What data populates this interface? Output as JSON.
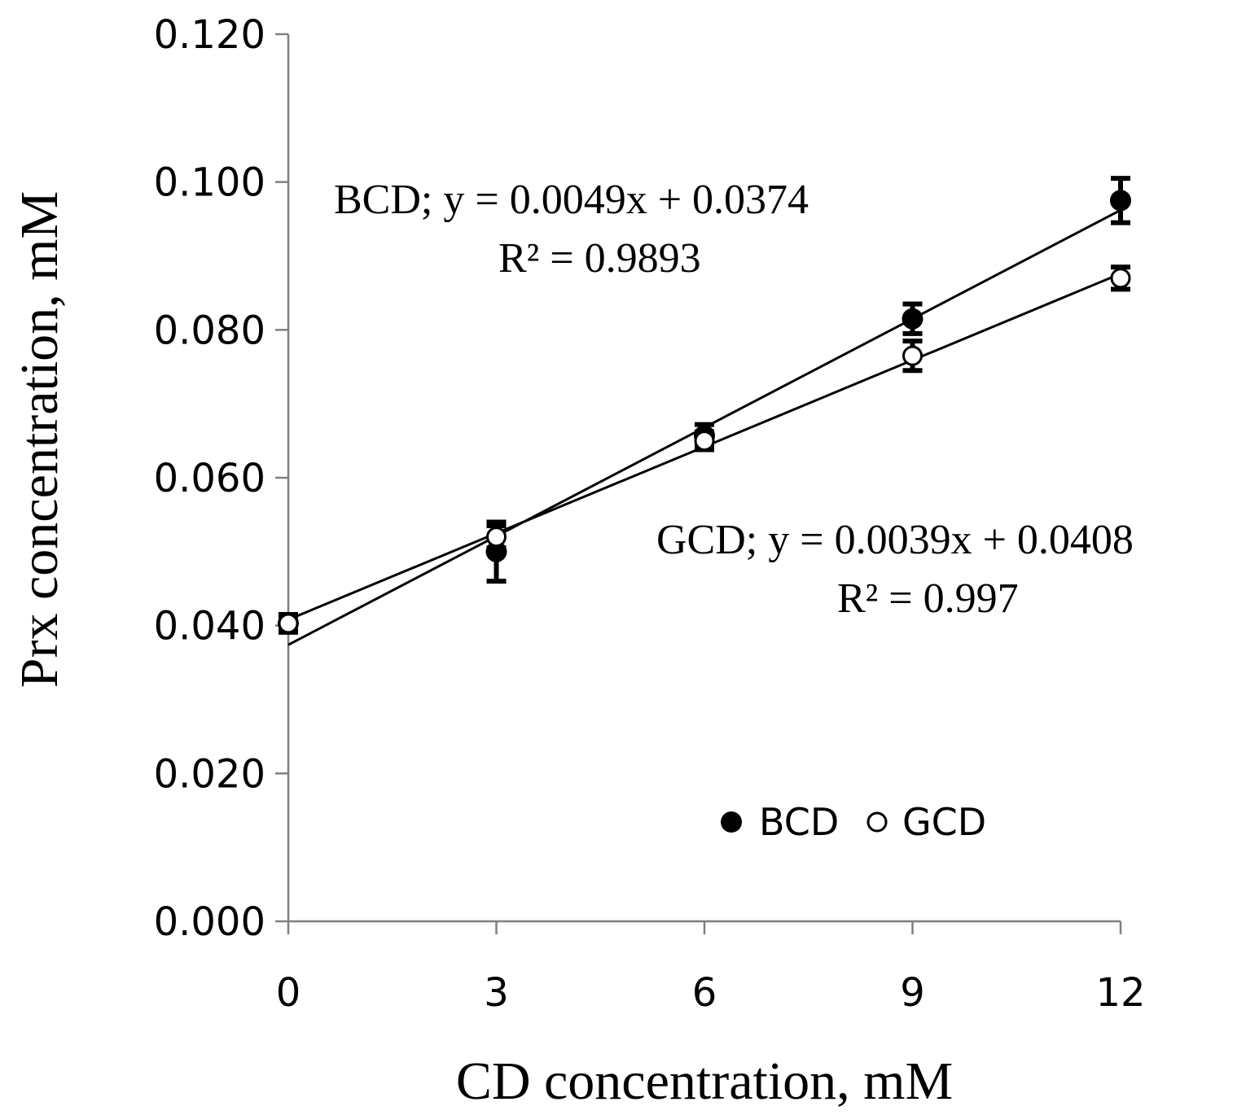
{
  "chart_data": {
    "type": "scatter",
    "title": "",
    "xlabel": "CD concentration, mM",
    "ylabel": "Prx concentration, mM",
    "xlim": [
      0,
      12
    ],
    "ylim": [
      0,
      0.12
    ],
    "x_ticks": [
      "0",
      "3",
      "6",
      "9",
      "12"
    ],
    "x_tick_values": [
      0,
      3,
      6,
      9,
      12
    ],
    "y_ticks": [
      "0.000",
      "0.020",
      "0.040",
      "0.060",
      "0.080",
      "0.100",
      "0.120"
    ],
    "y_tick_values": [
      0,
      0.02,
      0.04,
      0.06,
      0.08,
      0.1,
      0.12
    ],
    "grid": false,
    "legend_position": "lower-right",
    "series": [
      {
        "name": "BCD",
        "marker": "filled-circle",
        "x": [
          0,
          3,
          6,
          9,
          12
        ],
        "values": [
          0.0403,
          0.05,
          0.0657,
          0.0815,
          0.0975
        ],
        "errors": [
          0.0012,
          0.004,
          0.0015,
          0.002,
          0.003
        ],
        "trendline": {
          "slope": 0.0049,
          "intercept": 0.0374
        },
        "equation": "BCD; y = 0.0049x + 0.0374",
        "r2": "R² = 0.9893"
      },
      {
        "name": "GCD",
        "marker": "open-circle",
        "x": [
          0,
          3,
          6,
          9,
          12
        ],
        "values": [
          0.0403,
          0.052,
          0.065,
          0.0765,
          0.087
        ],
        "errors": [
          0.001,
          0.0015,
          0.0012,
          0.002,
          0.0015
        ],
        "trendline": {
          "slope": 0.0039,
          "intercept": 0.0408
        },
        "equation": "GCD; y = 0.0039x + 0.0408",
        "r2": "R² = 0.997"
      }
    ],
    "legend": [
      "BCD",
      "GCD"
    ]
  }
}
